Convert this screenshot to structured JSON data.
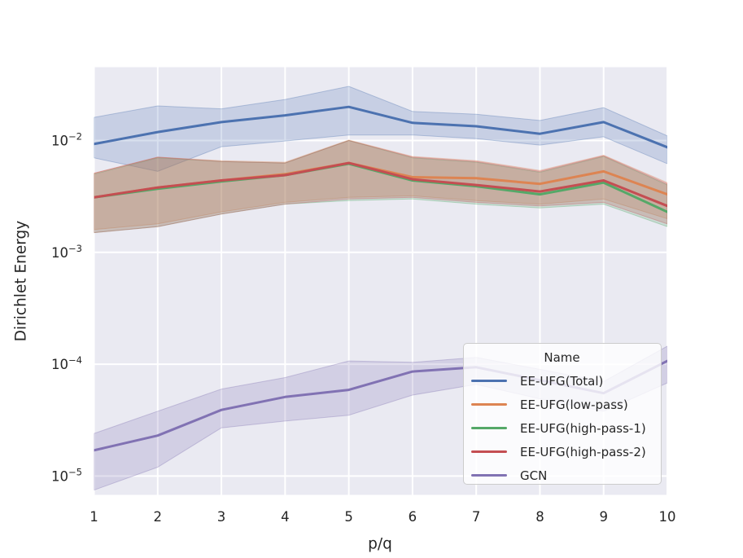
{
  "chart_data": {
    "type": "line",
    "title": "",
    "xlabel": "p/q",
    "ylabel": "Dirichlet Energy",
    "legend_title": "Name",
    "legend_position": "lower right",
    "yscale": "log",
    "grid": true,
    "plot_background": "#eaeaf2",
    "gridline_color": "#ffffff",
    "text_color": "#262626",
    "xlim": [
      1,
      10
    ],
    "ylim": [
      6.8e-06,
      0.045
    ],
    "xticks": [
      1,
      2,
      3,
      4,
      5,
      6,
      7,
      8,
      9,
      10
    ],
    "ytick_exponents": [
      -2,
      -3,
      -4,
      -5
    ],
    "x": [
      1,
      2,
      3,
      4,
      5,
      6,
      7,
      8,
      9,
      10
    ],
    "series": [
      {
        "name": "EE-UFG(Total)",
        "color": "#4c72b0",
        "values": [
          0.0093,
          0.0119,
          0.0146,
          0.0168,
          0.02,
          0.0144,
          0.0134,
          0.0115,
          0.0146,
          0.0087
        ],
        "band_lo": [
          0.007,
          0.0053,
          0.0088,
          0.0099,
          0.0112,
          0.0112,
          0.0104,
          0.0091,
          0.0108,
          0.0062
        ],
        "band_hi": [
          0.0161,
          0.0204,
          0.0192,
          0.0233,
          0.0305,
          0.0182,
          0.0172,
          0.0151,
          0.0197,
          0.011
        ]
      },
      {
        "name": "EE-UFG(low-pass)",
        "color": "#dd8452",
        "values": [
          0.0031,
          0.0038,
          0.0044,
          0.005,
          0.0063,
          0.0047,
          0.0046,
          0.0041,
          0.0053,
          0.0033
        ],
        "band_lo": [
          0.0016,
          0.0018,
          0.0023,
          0.0028,
          0.0031,
          0.0032,
          0.0029,
          0.0027,
          0.003,
          0.002
        ],
        "band_hi": [
          0.0051,
          0.0071,
          0.0066,
          0.0064,
          0.0101,
          0.0072,
          0.0066,
          0.0054,
          0.0074,
          0.0042
        ]
      },
      {
        "name": "EE-UFG(high-pass-1)",
        "color": "#55a868",
        "values": [
          0.0031,
          0.0037,
          0.0043,
          0.0049,
          0.0062,
          0.0044,
          0.0039,
          0.0033,
          0.0042,
          0.0023
        ],
        "band_lo": [
          0.0015,
          0.0017,
          0.0022,
          0.0027,
          0.0029,
          0.003,
          0.0027,
          0.0025,
          0.0027,
          0.0017
        ],
        "band_hi": [
          0.005,
          0.007,
          0.0065,
          0.0063,
          0.01,
          0.007,
          0.0064,
          0.0052,
          0.0072,
          0.004
        ]
      },
      {
        "name": "EE-UFG(high-pass-2)",
        "color": "#c44e52",
        "values": [
          0.0031,
          0.0038,
          0.0044,
          0.0049,
          0.0063,
          0.0045,
          0.004,
          0.0035,
          0.0044,
          0.0026
        ],
        "band_lo": [
          0.0015,
          0.0017,
          0.0022,
          0.0027,
          0.003,
          0.0031,
          0.0028,
          0.0026,
          0.0028,
          0.0018
        ],
        "band_hi": [
          0.0051,
          0.0071,
          0.0065,
          0.0063,
          0.01,
          0.0071,
          0.0065,
          0.0053,
          0.0073,
          0.0041
        ]
      },
      {
        "name": "GCN",
        "color": "#8172b3",
        "values": [
          1.7e-05,
          2.3e-05,
          3.9e-05,
          5.1e-05,
          5.9e-05,
          8.6e-05,
          9.4e-05,
          7.2e-05,
          5.5e-05,
          0.000107
        ],
        "band_lo": [
          7.5e-06,
          1.2e-05,
          2.7e-05,
          3.1e-05,
          3.5e-05,
          5.3e-05,
          6.6e-05,
          4.9e-05,
          3.8e-05,
          6.8e-05
        ],
        "band_hi": [
          2.4e-05,
          3.8e-05,
          6e-05,
          7.6e-05,
          0.000107,
          0.000104,
          0.000115,
          9e-05,
          7e-05,
          0.000145
        ]
      }
    ]
  }
}
